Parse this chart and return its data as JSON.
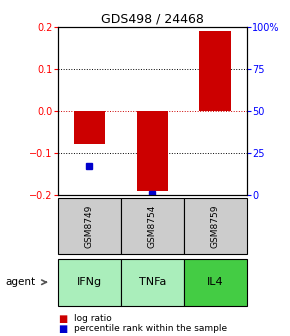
{
  "title": "GDS498 / 24468",
  "samples": [
    "GSM8749",
    "GSM8754",
    "GSM8759"
  ],
  "agents": [
    "IFNg",
    "TNFa",
    "IL4"
  ],
  "log_ratios": [
    -0.08,
    -0.19,
    0.19
  ],
  "percentile_ranks": [
    17.0,
    0.5,
    null
  ],
  "ylim_left": [
    -0.2,
    0.2
  ],
  "ylim_right": [
    0,
    100
  ],
  "yticks_left": [
    -0.2,
    -0.1,
    0.0,
    0.1,
    0.2
  ],
  "yticks_right": [
    0,
    25,
    50,
    75,
    100
  ],
  "ytick_labels_right": [
    "0",
    "25",
    "50",
    "75",
    "100%"
  ],
  "bar_color": "#cc0000",
  "dot_color": "#0000cc",
  "zero_line_color": "#cc0000",
  "sample_box_color": "#cccccc",
  "agent_colors": [
    "#aaeebb",
    "#aaeebb",
    "#44cc44"
  ],
  "bar_width": 0.5,
  "legend_log_ratio_color": "#cc0000",
  "legend_percentile_color": "#0000cc",
  "fig_width": 2.9,
  "fig_height": 3.36,
  "dpi": 100
}
